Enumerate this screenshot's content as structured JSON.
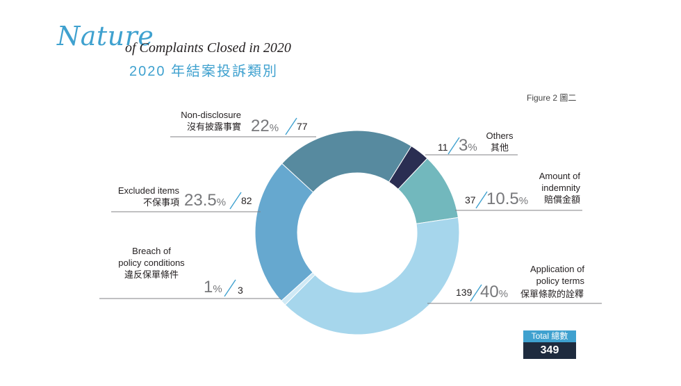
{
  "title": {
    "script": "Nature",
    "rest": "of Complaints Closed in 2020",
    "zh": "2020 年結案投訴類別"
  },
  "figure_label": "Figure 2 圖二",
  "total": {
    "label": "Total 總數",
    "value": "349"
  },
  "chart_data": {
    "type": "pie",
    "donut": true,
    "total": 349,
    "categories": [
      {
        "key": "others",
        "en": "Others",
        "zh": "其他",
        "percent": 3,
        "percent_text": "3",
        "count": 11,
        "color": "#2a2e52"
      },
      {
        "key": "indemnity",
        "en": "Amount of indemnity",
        "zh": "賠償金額",
        "percent": 10.5,
        "percent_text": "10.5",
        "count": 37,
        "color": "#72b8bd"
      },
      {
        "key": "application",
        "en": "Application of policy terms",
        "zh": "保單條款的詮釋",
        "percent": 40,
        "percent_text": "40",
        "count": 139,
        "color": "#a6d6ec"
      },
      {
        "key": "breach",
        "en": "Breach of policy conditions",
        "zh": "違反保單條件",
        "percent": 1,
        "percent_text": "1",
        "count": 3,
        "color": "#cfe9f5"
      },
      {
        "key": "excluded",
        "en": "Excluded items",
        "zh": "不保事項",
        "percent": 23.5,
        "percent_text": "23.5",
        "count": 82,
        "color": "#66a8cf"
      },
      {
        "key": "nondisclosure",
        "en": "Non-disclosure",
        "zh": "沒有披露事實",
        "percent": 22,
        "percent_text": "22",
        "count": 77,
        "color": "#578a9f"
      }
    ],
    "label_text": {
      "others_en": "Others",
      "indemnity_en_1": "Amount of",
      "indemnity_en_2": "indemnity",
      "application_en_1": "Application of",
      "application_en_2": "policy terms",
      "breach_en_1": "Breach of",
      "breach_en_2": "policy conditions",
      "percent_sign": "%"
    }
  }
}
